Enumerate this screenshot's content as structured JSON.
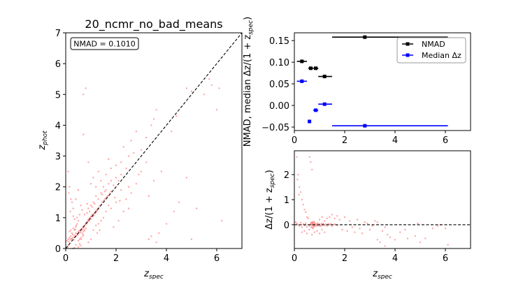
{
  "colors": {
    "scatter": "#ff0000",
    "nmad": "#000000",
    "median": "#0000ff",
    "diagonal": "#000000"
  },
  "chart_data": [
    {
      "type": "scatter",
      "title": "20_ncmr_no_bad_means",
      "xlabel": "z",
      "xlabel_sub": "spec",
      "ylabel": "z",
      "ylabel_sub": "phot",
      "xlim": [
        0,
        7
      ],
      "ylim": [
        0,
        7
      ],
      "xticks": [
        "0",
        "2",
        "4",
        "6"
      ],
      "yticks": [
        "0",
        "1",
        "2",
        "3",
        "4",
        "5",
        "6",
        "7"
      ],
      "annotation": "NMAD = 0.1010",
      "reference_line": "y = x (dashed)",
      "points": [
        [
          0.05,
          0.25
        ],
        [
          0.1,
          0.3
        ],
        [
          0.12,
          0.22
        ],
        [
          0.15,
          0.35
        ],
        [
          0.18,
          0.28
        ],
        [
          0.2,
          0.4
        ],
        [
          0.22,
          0.31
        ],
        [
          0.25,
          0.33
        ],
        [
          0.28,
          0.45
        ],
        [
          0.3,
          0.36
        ],
        [
          0.32,
          0.28
        ],
        [
          0.35,
          0.42
        ],
        [
          0.38,
          0.38
        ],
        [
          0.4,
          0.5
        ],
        [
          0.42,
          0.41
        ],
        [
          0.45,
          0.47
        ],
        [
          0.48,
          0.44
        ],
        [
          0.5,
          0.55
        ],
        [
          0.52,
          0.5
        ],
        [
          0.55,
          0.58
        ],
        [
          0.58,
          0.52
        ],
        [
          0.6,
          0.62
        ],
        [
          0.62,
          0.57
        ],
        [
          0.65,
          0.66
        ],
        [
          0.68,
          0.61
        ],
        [
          0.7,
          0.7
        ],
        [
          0.72,
          0.68
        ],
        [
          0.75,
          0.74
        ],
        [
          0.78,
          0.8
        ],
        [
          0.8,
          0.78
        ],
        [
          0.82,
          0.85
        ],
        [
          0.85,
          0.82
        ],
        [
          0.88,
          0.9
        ],
        [
          0.9,
          0.95
        ],
        [
          0.92,
          0.88
        ],
        [
          0.95,
          0.98
        ],
        [
          0.98,
          1.02
        ],
        [
          1.0,
          0.96
        ],
        [
          1.02,
          1.05
        ],
        [
          1.05,
          1.1
        ],
        [
          1.08,
          1.04
        ],
        [
          1.1,
          1.12
        ],
        [
          1.12,
          1.08
        ],
        [
          1.15,
          1.15
        ],
        [
          1.18,
          1.2
        ],
        [
          1.2,
          1.16
        ],
        [
          1.22,
          1.25
        ],
        [
          1.25,
          1.22
        ],
        [
          1.28,
          1.3
        ],
        [
          1.3,
          1.28
        ],
        [
          1.35,
          1.38
        ],
        [
          1.4,
          1.42
        ],
        [
          1.45,
          1.5
        ],
        [
          1.5,
          1.55
        ],
        [
          1.55,
          1.6
        ],
        [
          1.6,
          1.65
        ],
        [
          1.65,
          1.7
        ],
        [
          1.7,
          1.72
        ],
        [
          1.75,
          1.78
        ],
        [
          1.8,
          1.85
        ],
        [
          0.7,
          0.45
        ],
        [
          0.65,
          0.5
        ],
        [
          0.72,
          0.55
        ],
        [
          0.68,
          0.4
        ],
        [
          0.75,
          0.6
        ],
        [
          0.6,
          0.35
        ],
        [
          0.8,
          0.65
        ],
        [
          0.55,
          0.3
        ],
        [
          0.5,
          0.25
        ],
        [
          0.62,
          0.3
        ],
        [
          0.35,
          0.6
        ],
        [
          0.4,
          0.7
        ],
        [
          0.3,
          0.65
        ],
        [
          0.25,
          0.5
        ],
        [
          0.2,
          0.6
        ],
        [
          0.15,
          0.55
        ],
        [
          0.45,
          0.8
        ],
        [
          0.5,
          0.9
        ],
        [
          0.42,
          0.75
        ],
        [
          0.38,
          0.62
        ],
        [
          0.9,
          1.3
        ],
        [
          1.0,
          1.4
        ],
        [
          0.95,
          1.2
        ],
        [
          1.1,
          1.5
        ],
        [
          1.2,
          1.7
        ],
        [
          1.3,
          1.6
        ],
        [
          1.4,
          1.8
        ],
        [
          0.85,
          1.15
        ],
        [
          1.05,
          1.35
        ],
        [
          1.15,
          1.45
        ],
        [
          1.5,
          2.0
        ],
        [
          1.6,
          1.9
        ],
        [
          1.7,
          2.1
        ],
        [
          1.8,
          2.2
        ],
        [
          1.9,
          2.05
        ],
        [
          2.0,
          2.3
        ],
        [
          2.1,
          2.2
        ],
        [
          2.2,
          2.4
        ],
        [
          1.45,
          1.75
        ],
        [
          1.55,
          1.85
        ],
        [
          0.7,
          5.0
        ],
        [
          0.8,
          5.2
        ],
        [
          0.7,
          3.7
        ],
        [
          0.1,
          2.5
        ],
        [
          0.15,
          2.0
        ],
        [
          0.2,
          1.6
        ],
        [
          0.25,
          1.5
        ],
        [
          0.3,
          1.3
        ],
        [
          0.12,
          1.8
        ],
        [
          0.18,
          1.2
        ],
        [
          0.4,
          1.6
        ],
        [
          0.5,
          1.9
        ],
        [
          0.6,
          1.4
        ],
        [
          0.55,
          1.1
        ],
        [
          0.45,
          1.0
        ],
        [
          0.35,
          0.95
        ],
        [
          0.65,
          1.25
        ],
        [
          0.75,
          1.1
        ],
        [
          0.85,
          1.45
        ],
        [
          0.3,
          1.05
        ],
        [
          1.1,
          2.3
        ],
        [
          1.2,
          2.0
        ],
        [
          1.3,
          2.5
        ],
        [
          1.0,
          2.1
        ],
        [
          0.9,
          2.8
        ],
        [
          1.4,
          2.2
        ],
        [
          1.6,
          2.4
        ],
        [
          1.8,
          2.6
        ],
        [
          2.0,
          2.7
        ],
        [
          1.7,
          2.9
        ],
        [
          1.2,
          0.75
        ],
        [
          1.3,
          0.8
        ],
        [
          1.4,
          0.9
        ],
        [
          1.5,
          1.0
        ],
        [
          1.6,
          1.2
        ],
        [
          1.8,
          1.3
        ],
        [
          2.0,
          1.5
        ],
        [
          1.35,
          0.6
        ],
        [
          1.1,
          0.6
        ],
        [
          1.25,
          0.5
        ],
        [
          2.2,
          2.8
        ],
        [
          2.4,
          2.6
        ],
        [
          2.5,
          3.0
        ],
        [
          2.3,
          3.3
        ],
        [
          2.6,
          3.5
        ],
        [
          2.8,
          3.8
        ],
        [
          3.0,
          3.2
        ],
        [
          2.7,
          3.1
        ],
        [
          3.2,
          3.6
        ],
        [
          3.4,
          4.0
        ],
        [
          3.5,
          4.2
        ],
        [
          3.6,
          4.5
        ],
        [
          3.0,
          2.5
        ],
        [
          3.2,
          2.8
        ],
        [
          2.5,
          2.0
        ],
        [
          2.6,
          1.8
        ],
        [
          2.8,
          2.1
        ],
        [
          3.5,
          2.2
        ],
        [
          3.3,
          1.7
        ],
        [
          3.8,
          2.5
        ],
        [
          3.6,
          0.2
        ],
        [
          3.7,
          0.5
        ],
        [
          3.3,
          0.3
        ],
        [
          4.0,
          0.8
        ],
        [
          4.5,
          1.5
        ],
        [
          5.0,
          0.3
        ],
        [
          4.3,
          1.2
        ],
        [
          4.8,
          2.3
        ],
        [
          5.2,
          1.3
        ],
        [
          3.4,
          0.4
        ],
        [
          4.8,
          5.2
        ],
        [
          5.0,
          5.1
        ],
        [
          5.7,
          5.5
        ],
        [
          5.8,
          5.3
        ],
        [
          6.0,
          4.5
        ],
        [
          6.1,
          5.2
        ],
        [
          5.5,
          5.0
        ],
        [
          4.2,
          3.8
        ],
        [
          4.4,
          4.3
        ],
        [
          6.2,
          0.9
        ],
        [
          0.3,
          0.0
        ],
        [
          0.35,
          0.02
        ],
        [
          0.5,
          0.05
        ],
        [
          0.6,
          0.1
        ],
        [
          0.55,
          0.15
        ],
        [
          0.4,
          0.12
        ],
        [
          0.1,
          0.1
        ],
        [
          0.08,
          0.05
        ],
        [
          1.0,
          0.3
        ],
        [
          0.9,
          0.2
        ],
        [
          2.3,
          1.2
        ],
        [
          2.1,
          0.9
        ],
        [
          1.9,
          0.7
        ],
        [
          2.4,
          1.6
        ],
        [
          2.5,
          1.3
        ],
        [
          2.9,
          2.4
        ],
        [
          2.2,
          1.9
        ],
        [
          1.7,
          1.4
        ],
        [
          1.95,
          1.65
        ],
        [
          2.15,
          1.55
        ]
      ]
    },
    {
      "type": "errorbar",
      "xlabel": "",
      "ylabel": "NMAD, median Δz/(1 + z",
      "ylabel_sub": "spec",
      "ylabel_end": ")",
      "xlim": [
        0,
        7
      ],
      "ylim": [
        -0.058,
        0.168
      ],
      "xticks": [
        "0",
        "2",
        "4",
        "6"
      ],
      "yticks": [
        "0.15",
        "0.10",
        "0.05",
        "0.00",
        "−0.05"
      ],
      "ytick_values": [
        0.15,
        0.1,
        0.05,
        0.0,
        -0.05
      ],
      "legend_position": "upper-right",
      "series": [
        {
          "name": "NMAD",
          "color": "#000000",
          "points": [
            {
              "x": 0.3,
              "xmin": 0.1,
              "xmax": 0.5,
              "y": 0.102
            },
            {
              "x": 0.65,
              "xmin": 0.55,
              "xmax": 0.75,
              "y": 0.086
            },
            {
              "x": 0.85,
              "xmin": 0.75,
              "xmax": 0.95,
              "y": 0.086
            },
            {
              "x": 1.2,
              "xmin": 0.95,
              "xmax": 1.5,
              "y": 0.067
            },
            {
              "x": 2.8,
              "xmin": 1.5,
              "xmax": 6.1,
              "y": 0.158
            }
          ]
        },
        {
          "name": "Median Δz",
          "color": "#0000ff",
          "points": [
            {
              "x": 0.3,
              "xmin": 0.1,
              "xmax": 0.5,
              "y": 0.056
            },
            {
              "x": 0.6,
              "xmin": 0.55,
              "xmax": 0.65,
              "y": -0.037
            },
            {
              "x": 0.85,
              "xmin": 0.75,
              "xmax": 0.95,
              "y": -0.011
            },
            {
              "x": 1.2,
              "xmin": 0.95,
              "xmax": 1.5,
              "y": 0.003
            },
            {
              "x": 2.8,
              "xmin": 1.5,
              "xmax": 6.1,
              "y": -0.047
            }
          ]
        }
      ]
    },
    {
      "type": "scatter",
      "xlabel": "z",
      "xlabel_sub": "spec",
      "ylabel": "Δz/(1 + z",
      "ylabel_sub": "spec",
      "ylabel_end": ")",
      "xlim": [
        0,
        7
      ],
      "ylim": [
        -0.95,
        2.95
      ],
      "xticks": [
        "0",
        "2",
        "4",
        "6"
      ],
      "yticks": [
        "0",
        "1",
        "2"
      ],
      "reference_line": "y = 0 (dashed)",
      "points": [
        [
          0.1,
          2.7
        ],
        [
          0.15,
          2.0
        ],
        [
          0.2,
          1.5
        ],
        [
          0.25,
          1.3
        ],
        [
          0.3,
          1.0
        ],
        [
          0.35,
          0.8
        ],
        [
          0.4,
          0.6
        ],
        [
          0.45,
          0.5
        ],
        [
          0.12,
          1.8
        ],
        [
          0.18,
          1.2
        ],
        [
          0.6,
          2.7
        ],
        [
          0.7,
          2.2
        ],
        [
          0.65,
          2.5
        ],
        [
          0.5,
          0.3
        ],
        [
          0.55,
          0.25
        ],
        [
          0.8,
          0.1
        ],
        [
          1.0,
          0.2
        ],
        [
          1.2,
          0.15
        ],
        [
          1.1,
          0.3
        ],
        [
          1.3,
          0.25
        ],
        [
          0.05,
          0.1
        ],
        [
          0.1,
          0.05
        ],
        [
          0.15,
          0.0
        ],
        [
          0.2,
          -0.05
        ],
        [
          0.25,
          0.08
        ],
        [
          0.3,
          -0.1
        ],
        [
          0.35,
          0.02
        ],
        [
          0.4,
          -0.03
        ],
        [
          0.45,
          0.06
        ],
        [
          0.5,
          -0.08
        ],
        [
          0.55,
          0.0
        ],
        [
          0.6,
          -0.05
        ],
        [
          0.65,
          0.03
        ],
        [
          0.7,
          -0.02
        ],
        [
          0.72,
          0.05
        ],
        [
          0.75,
          -0.04
        ],
        [
          0.78,
          0.01
        ],
        [
          0.8,
          -0.06
        ],
        [
          0.82,
          0.04
        ],
        [
          0.85,
          -0.03
        ],
        [
          0.88,
          0.02
        ],
        [
          0.9,
          -0.05
        ],
        [
          0.92,
          0.06
        ],
        [
          0.95,
          -0.02
        ],
        [
          0.98,
          0.03
        ],
        [
          1.0,
          -0.04
        ],
        [
          1.02,
          0.01
        ],
        [
          1.05,
          -0.06
        ],
        [
          1.08,
          0.04
        ],
        [
          1.1,
          -0.02
        ],
        [
          1.15,
          0.05
        ],
        [
          1.2,
          -0.03
        ],
        [
          1.25,
          0.02
        ],
        [
          1.3,
          -0.05
        ],
        [
          1.35,
          0.03
        ],
        [
          1.4,
          -0.01
        ],
        [
          1.45,
          0.04
        ],
        [
          1.5,
          -0.06
        ],
        [
          1.6,
          0.02
        ],
        [
          1.7,
          -0.03
        ],
        [
          0.3,
          -0.3
        ],
        [
          0.4,
          -0.25
        ],
        [
          0.5,
          -0.35
        ],
        [
          0.6,
          -0.2
        ],
        [
          0.7,
          -0.4
        ],
        [
          0.8,
          -0.3
        ],
        [
          0.9,
          -0.25
        ],
        [
          1.0,
          -0.35
        ],
        [
          1.1,
          -0.2
        ],
        [
          1.2,
          -0.3
        ],
        [
          1.4,
          0.3
        ],
        [
          1.6,
          0.25
        ],
        [
          1.8,
          0.2
        ],
        [
          2.0,
          0.3
        ],
        [
          2.2,
          0.15
        ],
        [
          1.5,
          0.4
        ],
        [
          1.7,
          0.35
        ],
        [
          1.9,
          -0.2
        ],
        [
          2.1,
          -0.25
        ],
        [
          2.3,
          -0.1
        ],
        [
          2.5,
          0.2
        ],
        [
          2.6,
          -0.15
        ],
        [
          2.8,
          0.1
        ],
        [
          3.0,
          -0.2
        ],
        [
          3.2,
          0.15
        ],
        [
          2.4,
          -0.3
        ],
        [
          2.7,
          -0.35
        ],
        [
          2.9,
          0.05
        ],
        [
          3.1,
          -0.05
        ],
        [
          3.3,
          0.1
        ],
        [
          3.5,
          -0.25
        ],
        [
          3.6,
          -0.1
        ],
        [
          3.7,
          -0.4
        ],
        [
          3.8,
          -0.5
        ],
        [
          4.0,
          -0.6
        ],
        [
          4.2,
          -0.3
        ],
        [
          4.5,
          -0.55
        ],
        [
          3.4,
          -0.7
        ],
        [
          3.6,
          -0.85
        ],
        [
          3.3,
          -0.6
        ],
        [
          5.0,
          -0.7
        ],
        [
          5.2,
          -0.55
        ],
        [
          5.5,
          -0.15
        ],
        [
          5.7,
          -0.05
        ],
        [
          5.8,
          0.0
        ],
        [
          6.0,
          -0.15
        ],
        [
          6.1,
          -0.8
        ],
        [
          4.8,
          -0.45
        ],
        [
          4.4,
          -0.2
        ],
        [
          4.9,
          0.05
        ],
        [
          0.68,
          -0.1
        ],
        [
          0.7,
          0.1
        ],
        [
          0.74,
          -0.15
        ],
        [
          0.76,
          0.12
        ],
        [
          0.71,
          -0.12
        ],
        [
          0.73,
          0.08
        ],
        [
          0.69,
          0.0
        ],
        [
          0.77,
          -0.08
        ],
        [
          0.66,
          0.07
        ],
        [
          0.79,
          0.02
        ]
      ]
    }
  ]
}
